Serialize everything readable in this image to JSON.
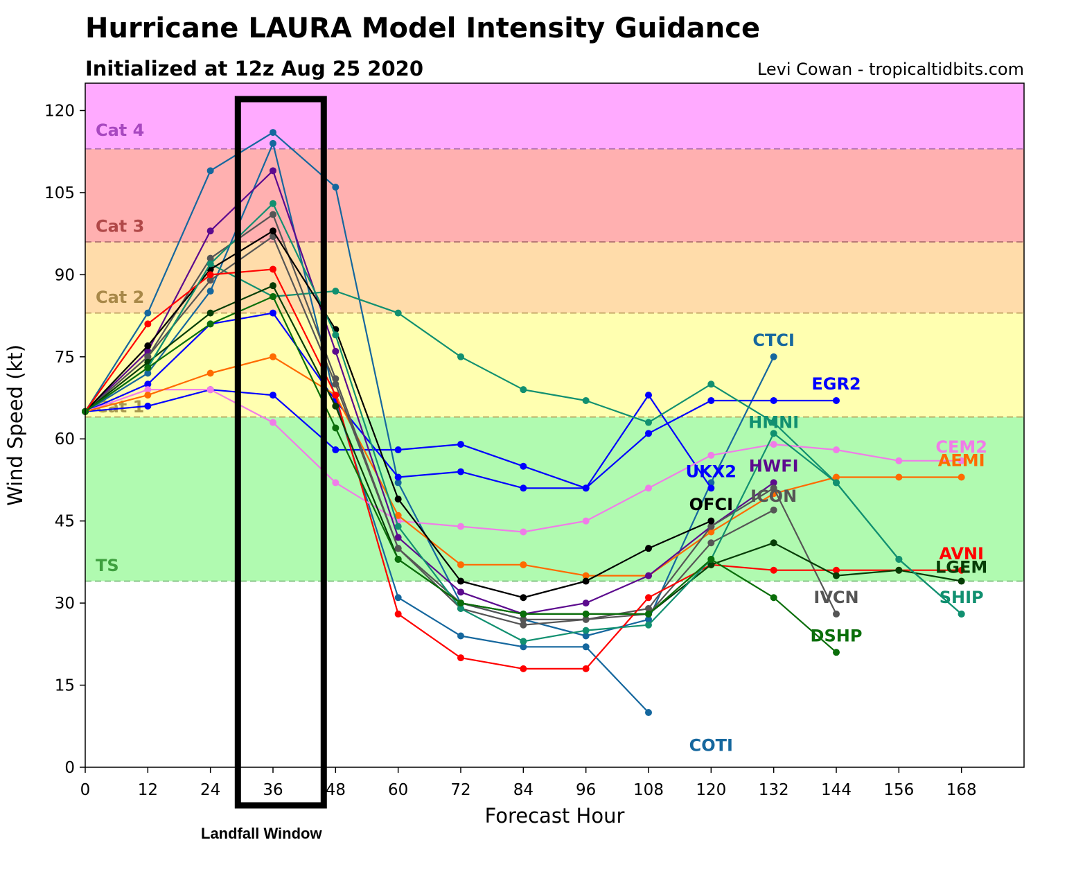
{
  "chart_data": {
    "type": "line",
    "title": "Hurricane LAURA Model Intensity Guidance",
    "subtitle": "Initialized at 12z Aug 25 2020",
    "credit": "Levi Cowan - tropicaltidbits.com",
    "xlabel": "Forecast Hour",
    "ylabel": "Wind Speed (kt)",
    "xlim": [
      0,
      180
    ],
    "ylim": [
      0,
      125
    ],
    "xticks": [
      0,
      12,
      24,
      36,
      48,
      60,
      72,
      84,
      96,
      108,
      120,
      132,
      144,
      156,
      168
    ],
    "yticks": [
      0,
      15,
      30,
      45,
      60,
      75,
      90,
      105,
      120
    ],
    "grid": false,
    "legend": "inline end-of-line labels",
    "categories": [
      {
        "name": "TS",
        "min": 34,
        "max": 64,
        "fill": "#b0fab0",
        "line": "#7fbf7f",
        "label_color": "#3fa03f"
      },
      {
        "name": "Cat 1",
        "min": 64,
        "max": 83,
        "fill": "#ffffb0",
        "line": "#b8a860",
        "label_color": "#a89a50"
      },
      {
        "name": "Cat 2",
        "min": 83,
        "max": 96,
        "fill": "#ffdcaa",
        "line": "#c0a060",
        "label_color": "#a88848"
      },
      {
        "name": "Cat 3",
        "min": 96,
        "max": 113,
        "fill": "#ffb0b0",
        "line": "#b07070",
        "label_color": "#b04848"
      },
      {
        "name": "Cat 4",
        "min": 113,
        "max": 125,
        "fill": "#ffaaff",
        "line": "#b070b0",
        "label_color": "#a848c0"
      }
    ],
    "annotation": {
      "label": "Landfall Window",
      "x_range": [
        29,
        46
      ]
    },
    "series": [
      {
        "name": "CTCI",
        "color": "#15679e",
        "x": [
          0,
          12,
          24,
          36,
          48,
          60,
          72,
          84,
          96,
          108,
          120,
          132
        ],
        "values": [
          65,
          83,
          109,
          116,
          106,
          52,
          30,
          27,
          24,
          27,
          52,
          75
        ],
        "label_x": 132,
        "label_y": 77
      },
      {
        "name": "COTI",
        "color": "#15679e",
        "x": [
          0,
          12,
          24,
          36,
          48,
          60,
          72,
          84,
          96,
          108
        ],
        "values": [
          65,
          72,
          87,
          114,
          67,
          31,
          24,
          22,
          22,
          10
        ],
        "label_x": 120,
        "label_y": 3
      },
      {
        "name": "EGR2",
        "color": "#0000ff",
        "x": [
          0,
          12,
          24,
          36,
          48,
          60,
          72,
          84,
          96,
          108,
          120,
          132,
          144
        ],
        "values": [
          65,
          70,
          81,
          83,
          67,
          53,
          54,
          51,
          51,
          61,
          67,
          67,
          67
        ],
        "label_x": 144,
        "label_y": 69
      },
      {
        "name": "UKX2",
        "color": "#0000ff",
        "x": [
          0,
          12,
          24,
          36,
          48,
          60,
          72,
          84,
          96,
          108,
          120
        ],
        "values": [
          65,
          66,
          69,
          68,
          58,
          58,
          59,
          55,
          51,
          68,
          51
        ],
        "label_x": 120,
        "label_y": 53
      },
      {
        "name": "HMNI",
        "color": "#119070",
        "x": [
          0,
          12,
          24,
          36,
          48,
          60,
          72,
          84,
          96,
          108,
          120,
          132,
          144,
          156,
          168
        ],
        "values": [
          65,
          73,
          92,
          86,
          87,
          83,
          75,
          69,
          67,
          63,
          70,
          63,
          52,
          38,
          28
        ],
        "label_x": 132,
        "label_y": 62
      },
      {
        "name": "CEM2",
        "color": "#f07ce8",
        "x": [
          0,
          12,
          24,
          36,
          48,
          60,
          72,
          84,
          96,
          108,
          120,
          132,
          144,
          156,
          168
        ],
        "values": [
          65,
          69,
          69,
          63,
          52,
          45,
          44,
          43,
          45,
          51,
          57,
          59,
          58,
          56,
          56
        ],
        "label_x": 168,
        "label_y": 57.5
      },
      {
        "name": "AEMI",
        "color": "#ff6a00",
        "x": [
          0,
          12,
          24,
          36,
          48,
          60,
          72,
          84,
          96,
          108,
          120,
          132,
          144,
          156,
          168
        ],
        "values": [
          65,
          68,
          72,
          75,
          68,
          46,
          37,
          37,
          35,
          35,
          43,
          50,
          53,
          53,
          53
        ],
        "label_x": 168,
        "label_y": 55
      },
      {
        "name": "HWFI",
        "color": "#5c0a8e",
        "x": [
          0,
          12,
          24,
          36,
          48,
          60,
          72,
          84,
          96,
          108,
          120,
          132
        ],
        "values": [
          65,
          76,
          98,
          109,
          76,
          42,
          32,
          28,
          30,
          35,
          44,
          52
        ],
        "label_x": 132,
        "label_y": 54
      },
      {
        "name": "ICON",
        "color": "#555555",
        "x": [
          0,
          12,
          24,
          36,
          48,
          60,
          72,
          84,
          96,
          108,
          120,
          132
        ],
        "values": [
          65,
          75,
          89,
          97,
          70,
          40,
          30,
          27,
          27,
          28,
          41,
          47
        ],
        "label_x": 132,
        "label_y": 48.5
      },
      {
        "name": "IVCN",
        "color": "#555555",
        "x": [
          0,
          12,
          24,
          36,
          48,
          60,
          72,
          84,
          96,
          108,
          120,
          132,
          144
        ],
        "values": [
          65,
          75,
          93,
          101,
          71,
          40,
          29,
          26,
          27,
          29,
          44,
          51,
          28
        ],
        "label_x": 144,
        "label_y": 30
      },
      {
        "name": "OFCI",
        "color": "#000000",
        "x": [
          0,
          12,
          24,
          36,
          48,
          60,
          72,
          84,
          96,
          108,
          120
        ],
        "values": [
          65,
          77,
          91,
          98,
          80,
          49,
          34,
          31,
          34,
          40,
          45
        ],
        "label_x": 120,
        "label_y": 47
      },
      {
        "name": "AVNI",
        "color": "#ff0000",
        "x": [
          0,
          12,
          24,
          36,
          48,
          60,
          72,
          84,
          96,
          108,
          120,
          132,
          144,
          156,
          168
        ],
        "values": [
          65,
          81,
          90,
          91,
          68,
          28,
          20,
          18,
          18,
          31,
          37,
          36,
          36,
          36,
          36
        ],
        "label_x": 168,
        "label_y": 38
      },
      {
        "name": "LGEM",
        "color": "#063d06",
        "x": [
          0,
          12,
          24,
          36,
          48,
          60,
          72,
          84,
          96,
          108,
          120,
          132,
          144,
          156,
          168
        ],
        "values": [
          65,
          74,
          83,
          88,
          66,
          38,
          30,
          28,
          28,
          28,
          37,
          41,
          35,
          36,
          34
        ],
        "label_x": 168,
        "label_y": 35.5
      },
      {
        "name": "SHIP",
        "color": "#119070",
        "x": [
          0,
          12,
          24,
          36,
          48,
          60,
          72,
          84,
          96,
          108,
          120,
          132,
          144,
          156,
          168
        ],
        "values": [
          65,
          73,
          92,
          103,
          79,
          44,
          29,
          23,
          25,
          26,
          38,
          61,
          52,
          38,
          28
        ],
        "label_x": 168,
        "label_y": 30
      },
      {
        "name": "DSHP",
        "color": "#0a6e0a",
        "x": [
          0,
          12,
          24,
          36,
          48,
          60,
          72,
          84,
          96,
          108,
          120,
          132,
          144
        ],
        "values": [
          65,
          73,
          81,
          86,
          62,
          38,
          30,
          28,
          28,
          28,
          38,
          31,
          21
        ],
        "label_x": 144,
        "label_y": 23
      }
    ]
  }
}
